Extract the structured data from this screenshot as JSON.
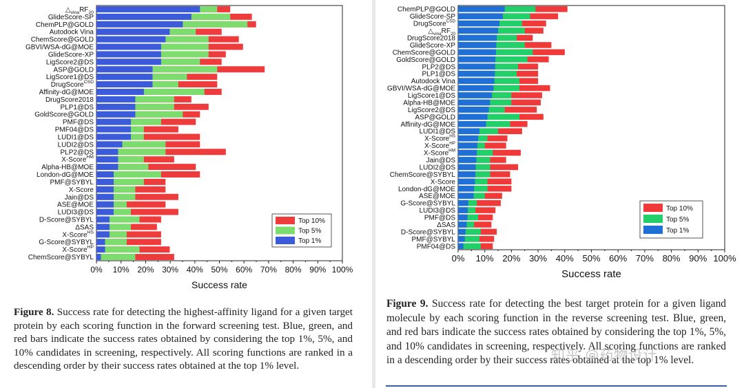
{
  "colors": {
    "top1": "#3b5bdb",
    "top5": "#7ddc6e",
    "top10": "#ee3b3b",
    "top1_b": "#1f6fd6",
    "top5_b": "#22d06a",
    "top10_b": "#f03a3a"
  },
  "legend": {
    "top10": "Top 10%",
    "top5": "Top 5%",
    "top1": "Top 1%"
  },
  "figure8": {
    "caption_label": "Figure 8.",
    "caption_text": " Success rate for detecting the highest-affinity ligand for a given target protein by each scoring function in the forward screening test. Blue, green, and red bars indicate the success rates obtained by considering the top 1%, 5%, and 10% candidates in screening, respectively. All scoring functions are ranked in a descending order by their success rates obtained at the top 1% level.",
    "chart_data": {
      "type": "bar",
      "orientation": "horizontal",
      "stacked": "overlay",
      "title": "",
      "xlabel": "Success rate",
      "ylabel": "",
      "xlim": [
        0,
        100
      ],
      "xticks": [
        "0%",
        "10%",
        "20%",
        "30%",
        "40%",
        "50%",
        "60%",
        "70%",
        "80%",
        "90%",
        "100%"
      ],
      "legend_position": "bottom-right",
      "categories": [
        {
          "base": "△",
          "sub": "vina",
          "main": "RF",
          "sub2": "20"
        },
        {
          "main": "GlideScore-SP"
        },
        {
          "main": "ChemPLP@GOLD"
        },
        {
          "main": "Autodock Vina"
        },
        {
          "main": "ChemScore@GOLD"
        },
        {
          "main": "GBVI/WSA-dG@MOE"
        },
        {
          "main": "GlideScore-XP"
        },
        {
          "main": "LigScore2@DS"
        },
        {
          "main": "ASP@GOLD"
        },
        {
          "main": "LigScore1@DS"
        },
        {
          "main": "DrugScore",
          "sup": "CSD"
        },
        {
          "main": "Affinity-dG@MOE"
        },
        {
          "main": "DrugScore2018"
        },
        {
          "main": "PLP1@DS"
        },
        {
          "main": "GoldScore@GOLD"
        },
        {
          "main": "PMF@DS"
        },
        {
          "main": "PMF04@DS"
        },
        {
          "main": "LUDI1@DS"
        },
        {
          "main": "LUDI2@DS"
        },
        {
          "main": "PLP2@DS"
        },
        {
          "main": "X-Score",
          "sup": "HM"
        },
        {
          "main": "Alpha-HB@MOE"
        },
        {
          "main": "London-dG@MOE"
        },
        {
          "main": "PMF@SYBYL"
        },
        {
          "main": "X-Score"
        },
        {
          "main": "Jain@DS"
        },
        {
          "main": "ASE@MOE"
        },
        {
          "main": "LUDI3@DS"
        },
        {
          "main": "D-Score@SYBYL"
        },
        {
          "main": "ΔSAS"
        },
        {
          "main": "X-Score",
          "sup": "HS"
        },
        {
          "main": "G-Score@SYBYL"
        },
        {
          "main": "X-Score",
          "sup": "HP"
        },
        {
          "main": "ChemScore@SYBYL"
        }
      ],
      "series": [
        {
          "name": "Top 1%",
          "values": [
            42.1,
            38.6,
            35.1,
            29.8,
            28.1,
            26.3,
            26.3,
            26.3,
            22.8,
            22.8,
            22.8,
            19.3,
            15.8,
            15.8,
            15.8,
            14.0,
            14.0,
            14.0,
            10.5,
            8.8,
            8.8,
            8.8,
            7.0,
            7.0,
            7.0,
            7.0,
            7.0,
            7.0,
            5.3,
            5.3,
            5.3,
            3.5,
            3.5,
            1.8
          ]
        },
        {
          "name": "Top 5%",
          "values": [
            49.1,
            54.4,
            61.4,
            40.4,
            45.6,
            45.6,
            45.6,
            42.1,
            49.1,
            36.8,
            33.3,
            43.9,
            31.6,
            31.6,
            35.1,
            26.3,
            19.3,
            19.3,
            28.1,
            28.1,
            19.3,
            21.1,
            26.3,
            19.3,
            15.8,
            15.8,
            12.3,
            14.0,
            17.5,
            14.0,
            12.3,
            12.3,
            17.5,
            15.8
          ]
        },
        {
          "name": "Top 10%",
          "values": [
            54.4,
            63.2,
            64.9,
            50.9,
            57.9,
            59.6,
            52.6,
            50.9,
            68.4,
            49.1,
            49.1,
            50.9,
            38.6,
            45.6,
            42.1,
            40.4,
            33.3,
            42.1,
            42.1,
            52.6,
            31.6,
            40.4,
            42.1,
            28.1,
            28.1,
            33.3,
            28.1,
            33.3,
            26.3,
            24.6,
            26.3,
            26.3,
            29.8,
            31.6
          ]
        }
      ]
    }
  },
  "figure9": {
    "caption_label": "Figure 9.",
    "caption_text": " Success rate for detecting the best target protein for a given ligand molecule by each scoring function in the reverse screening test. Blue, green, and red bars indicate the success rates obtained by considering the top 1%, 5%, and 10% candidates in screening, respectively. All scoring functions are ranked in a descending order by their success rates obtained at the top 1% level.",
    "chart_data": {
      "type": "bar",
      "orientation": "horizontal",
      "stacked": "overlay",
      "title": "",
      "xlabel": "Success rate",
      "ylabel": "",
      "xlim": [
        0,
        100
      ],
      "xticks": [
        "0%",
        "10%",
        "20%",
        "30%",
        "40%",
        "50%",
        "60%",
        "70%",
        "80%",
        "90%",
        "100%"
      ],
      "legend_position": "bottom-right",
      "categories": [
        {
          "main": "ChemPLP@GOLD"
        },
        {
          "main": "GlideScore-SP"
        },
        {
          "main": "DrugScore",
          "sup": "CSD"
        },
        {
          "base": "△",
          "sub": "vina",
          "main": "RF",
          "sub2": "20"
        },
        {
          "main": "DrugScore2018"
        },
        {
          "main": "GlideScore-XP"
        },
        {
          "main": "ChemScore@GOLD"
        },
        {
          "main": "GoldScore@GOLD"
        },
        {
          "main": "PLP2@DS"
        },
        {
          "main": "PLP1@DS"
        },
        {
          "main": "Autodock Vina"
        },
        {
          "main": "GBVI/WSA-dG@MOE"
        },
        {
          "main": "LigScore1@DS"
        },
        {
          "main": "Alpha-HB@MOE"
        },
        {
          "main": "LigScore2@DS"
        },
        {
          "main": "ASP@GOLD"
        },
        {
          "main": "Affinity-dG@MOE"
        },
        {
          "main": "LUDI1@DS"
        },
        {
          "main": "X-Score",
          "sup": "HS"
        },
        {
          "main": "X-Score",
          "sup": "HP"
        },
        {
          "main": "X-Score",
          "sup": "HM"
        },
        {
          "main": "Jain@DS"
        },
        {
          "main": "LUDI2@DS"
        },
        {
          "main": "ChemScore@SYBYL"
        },
        {
          "main": "X-Score"
        },
        {
          "main": "London-dG@MOE"
        },
        {
          "main": "ASE@MOE"
        },
        {
          "main": "G-Score@SYBYL"
        },
        {
          "main": "LUDI3@DS"
        },
        {
          "main": "PMF@DS"
        },
        {
          "main": "ΔSAS"
        },
        {
          "main": "D-Score@SYBYL"
        },
        {
          "main": "PMF@SYBYL"
        },
        {
          "main": "PMF04@DS"
        }
      ],
      "series": [
        {
          "name": "Top 1%",
          "values": [
            17.5,
            16.8,
            15.5,
            15.0,
            14.5,
            14.3,
            14.2,
            14.0,
            13.9,
            13.8,
            13.6,
            13.3,
            12.7,
            12.0,
            11.5,
            11.0,
            10.5,
            8.0,
            7.5,
            7.2,
            7.0,
            6.8,
            6.6,
            6.5,
            6.3,
            6.0,
            5.8,
            3.8,
            3.6,
            3.5,
            3.2,
            2.8,
            2.5,
            2.0
          ]
        },
        {
          "name": "Top 5%",
          "values": [
            29.0,
            27.0,
            24.0,
            25.0,
            22.0,
            25.0,
            28.0,
            26.0,
            22.5,
            22.0,
            23.0,
            23.0,
            20.0,
            20.0,
            17.5,
            23.0,
            19.5,
            15.0,
            11.0,
            10.0,
            13.0,
            12.0,
            12.0,
            12.0,
            11.0,
            11.0,
            10.0,
            7.0,
            6.5,
            7.5,
            6.0,
            8.5,
            8.0,
            8.5
          ]
        },
        {
          "name": "Top 10%",
          "values": [
            41.0,
            37.5,
            33.0,
            32.0,
            28.0,
            35.0,
            40.0,
            34.0,
            30.0,
            30.0,
            30.0,
            34.5,
            31.5,
            31.0,
            29.5,
            32.0,
            26.0,
            24.0,
            18.5,
            18.0,
            23.5,
            18.0,
            22.5,
            19.5,
            20.0,
            20.0,
            16.5,
            16.0,
            14.0,
            13.0,
            12.5,
            14.5,
            13.5,
            13.0
          ]
        }
      ]
    }
  },
  "watermark": "知乎 @药物设计"
}
